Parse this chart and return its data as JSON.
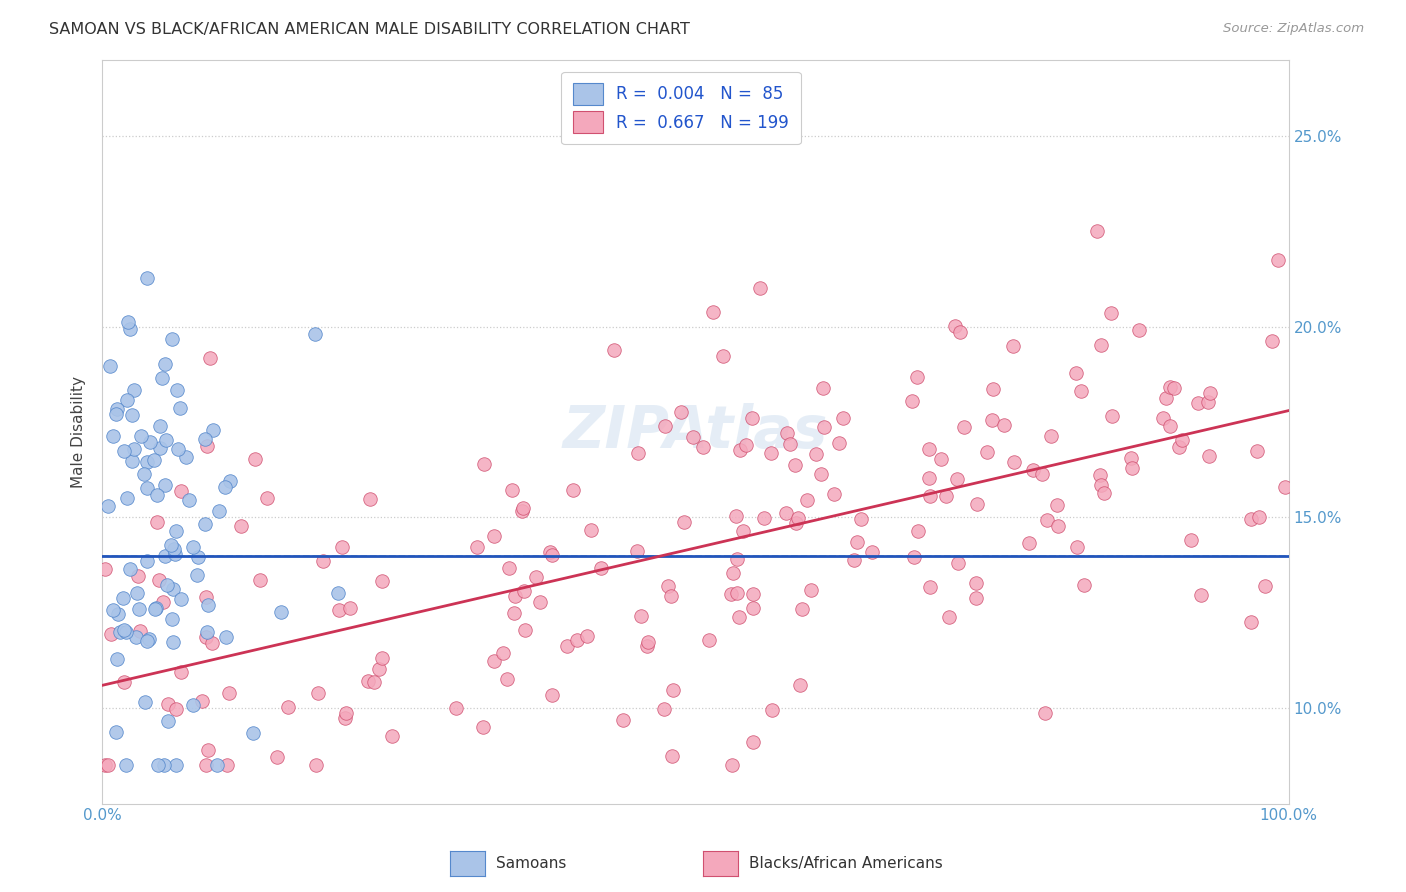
{
  "title": "SAMOAN VS BLACK/AFRICAN AMERICAN MALE DISABILITY CORRELATION CHART",
  "source": "Source: ZipAtlas.com",
  "ylabel": "Male Disability",
  "ytick_labels": [
    "10.0%",
    "15.0%",
    "20.0%",
    "25.0%"
  ],
  "ytick_values": [
    0.1,
    0.15,
    0.2,
    0.25
  ],
  "xlim": [
    0.0,
    1.0
  ],
  "ylim": [
    0.075,
    0.27
  ],
  "color_samoan_fill": "#aac4e8",
  "color_samoan_edge": "#5588cc",
  "color_black_fill": "#f4a8bc",
  "color_black_edge": "#d05070",
  "color_samoan_line": "#2255bb",
  "color_black_line": "#cc3355",
  "color_dashed": "#88bbdd",
  "background_color": "#ffffff",
  "label_samoan": "Samoans",
  "label_black": "Blacks/African Americans",
  "R_samoan": 0.004,
  "N_samoan": 85,
  "R_black": 0.667,
  "N_black": 199,
  "samoan_line_y0": 0.14,
  "samoan_line_y1": 0.14,
  "black_line_y0": 0.106,
  "black_line_y1": 0.178,
  "dashed_line_y": 0.14
}
